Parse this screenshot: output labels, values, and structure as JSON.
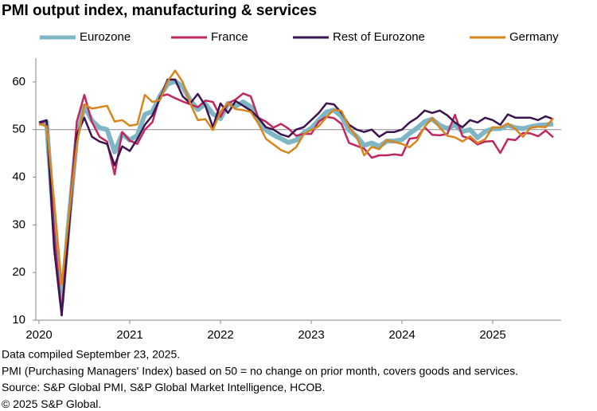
{
  "chart_data": {
    "type": "line",
    "title": "PMI output index, manufacturing & services",
    "categories": [
      "2020",
      null,
      null,
      null,
      null,
      null,
      null,
      null,
      null,
      null,
      null,
      null,
      "2021",
      null,
      null,
      null,
      null,
      null,
      null,
      null,
      null,
      null,
      null,
      null,
      "2022",
      null,
      null,
      null,
      null,
      null,
      null,
      null,
      null,
      null,
      null,
      null,
      "2023",
      null,
      null,
      null,
      null,
      null,
      null,
      null,
      null,
      null,
      null,
      null,
      "2024",
      null,
      null,
      null,
      null,
      null,
      null,
      null,
      null,
      null,
      null,
      null,
      "2025",
      null,
      null,
      null,
      null,
      null,
      null,
      null,
      null
    ],
    "series": [
      {
        "name": "Eurozone",
        "color": "#7fb6c6",
        "width": 6,
        "values": [
          51.3,
          51.6,
          29.7,
          13.6,
          31.9,
          48.5,
          54.9,
          51.9,
          50.4,
          50.0,
          45.3,
          49.1,
          47.8,
          48.8,
          53.2,
          53.8,
          57.1,
          59.5,
          60.2,
          59.0,
          56.2,
          54.2,
          55.4,
          53.3,
          52.3,
          55.5,
          54.9,
          55.8,
          54.8,
          52.0,
          49.9,
          48.9,
          48.1,
          47.3,
          47.8,
          49.3,
          50.3,
          52.0,
          53.7,
          54.1,
          52.8,
          49.9,
          48.6,
          46.7,
          47.2,
          46.5,
          47.6,
          47.6,
          47.9,
          49.2,
          50.3,
          51.7,
          52.2,
          50.9,
          50.2,
          51.0,
          49.6,
          50.0,
          48.3,
          49.6,
          50.2,
          50.2,
          50.9,
          50.4,
          50.2,
          50.6,
          50.9,
          51.0,
          51.2
        ]
      },
      {
        "name": "France",
        "color": "#c0275f",
        "width": 2.5,
        "values": [
          51.1,
          51.9,
          28.9,
          11.1,
          32.1,
          51.7,
          57.3,
          51.6,
          48.5,
          47.5,
          40.6,
          49.5,
          47.7,
          47.0,
          50.0,
          51.6,
          57.0,
          57.4,
          56.6,
          55.9,
          55.3,
          54.7,
          56.1,
          55.8,
          52.7,
          55.5,
          56.3,
          57.6,
          57.0,
          52.5,
          51.7,
          50.4,
          51.2,
          50.2,
          48.7,
          49.1,
          49.1,
          51.7,
          52.7,
          52.4,
          51.2,
          47.2,
          46.6,
          46.0,
          44.1,
          44.6,
          44.6,
          44.8,
          44.6,
          48.1,
          48.3,
          50.5,
          48.9,
          48.8,
          49.1,
          53.1,
          48.6,
          48.1,
          46.9,
          47.5,
          47.6,
          45.1,
          48.0,
          47.8,
          49.3,
          49.2,
          48.6,
          49.8,
          48.4
        ]
      },
      {
        "name": "Rest of Eurozone",
        "color": "#3b1450",
        "width": 2.5,
        "values": [
          51.5,
          52.0,
          25,
          11,
          30,
          49,
          52.5,
          48.5,
          47.5,
          47,
          42.5,
          46.5,
          45.5,
          48,
          51,
          53,
          56.5,
          60.5,
          60.5,
          57,
          55.5,
          57.5,
          55,
          50.5,
          55.5,
          53.5,
          56,
          55,
          54,
          52.5,
          50.5,
          50,
          49,
          48.5,
          50,
          50.5,
          52,
          53.5,
          55.5,
          55.3,
          53.5,
          51,
          50,
          49.5,
          50,
          48.5,
          49.5,
          49.5,
          50,
          51.5,
          52.5,
          54,
          53.5,
          54,
          53,
          51.5,
          50.5,
          52,
          51.5,
          52.5,
          52,
          51,
          53.2,
          52.5,
          52.5,
          52.5,
          52,
          52.8,
          52.2
        ]
      },
      {
        "name": "Germany",
        "color": "#d8861c",
        "width": 2.5,
        "values": [
          51.2,
          50.7,
          35.0,
          17.4,
          32.3,
          47.0,
          55.3,
          54.4,
          54.7,
          55.0,
          51.7,
          52.0,
          50.8,
          51.1,
          57.3,
          55.8,
          56.2,
          60.1,
          62.4,
          60.0,
          55.5,
          52.0,
          52.2,
          49.9,
          53.8,
          55.6,
          54.3,
          54.1,
          53.7,
          51.3,
          48.1,
          46.9,
          45.7,
          45.1,
          46.3,
          49.0,
          49.9,
          50.7,
          52.6,
          54.2,
          53.9,
          50.6,
          48.5,
          44.6,
          46.4,
          45.9,
          47.8,
          47.4,
          47.0,
          46.3,
          47.7,
          50.6,
          52.4,
          50.4,
          48.7,
          48.4,
          47.5,
          48.6,
          47.2,
          48.0,
          50.5,
          50.4,
          51.3,
          50.1,
          48.5,
          50.4,
          50.6,
          50.5,
          52.4
        ]
      }
    ],
    "ylim": [
      10,
      65
    ],
    "yticks": [
      10,
      20,
      30,
      40,
      50,
      60
    ],
    "reference_line": 50,
    "footnotes": [
      "Data compiled September 23, 2025.",
      "PMI (Purchasing Managers' Index) based on 50 = no change on prior month, covers goods and services.",
      "Source: S&P Global PMI, S&P Global Market Intelligence, HCOB.",
      "© 2025 S&P Global."
    ]
  }
}
